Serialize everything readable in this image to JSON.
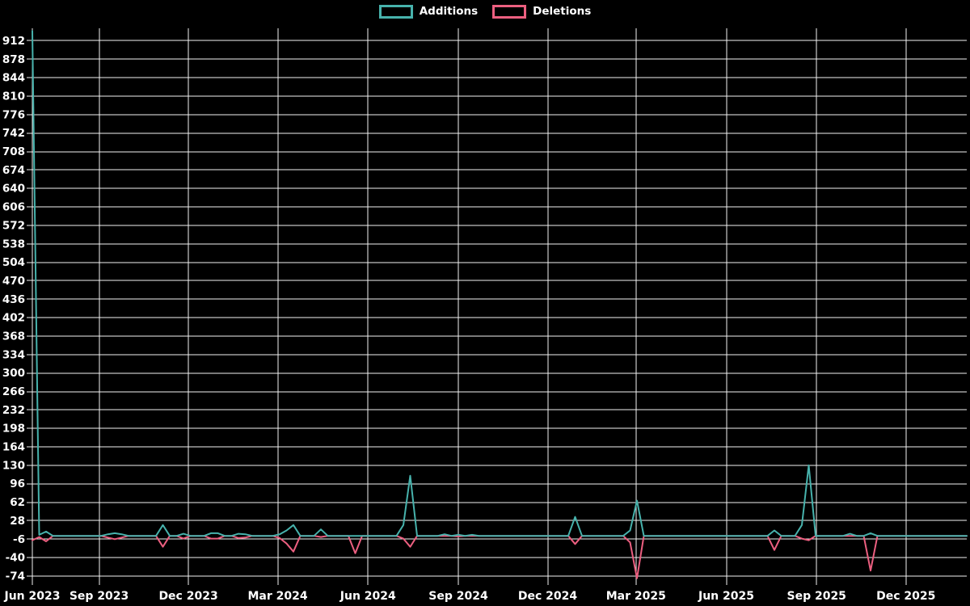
{
  "chart_data": {
    "type": "line",
    "title": "",
    "xlabel": "",
    "ylabel": "",
    "background": "#000000",
    "grid": true,
    "grid_color": "#f2f2f2",
    "text_color": "#ffffff",
    "legend_position": "top-center",
    "legend": [
      {
        "label": "Additions",
        "color": "#47b2ac"
      },
      {
        "label": "Deletions",
        "color": "#ec5f80"
      }
    ],
    "ylim": [
      -80,
      935
    ],
    "y_ticks": [
      912,
      878,
      844,
      810,
      776,
      742,
      708,
      674,
      640,
      606,
      572,
      538,
      504,
      470,
      436,
      402,
      368,
      334,
      300,
      266,
      232,
      198,
      164,
      130,
      96,
      62,
      28,
      -6,
      -40,
      -74
    ],
    "x_domain": [
      "2023-06-25",
      "2026-02-01"
    ],
    "x_ticks": [
      {
        "label": "Jun 2023",
        "date": "2023-06-25"
      },
      {
        "label": "Sep 2023",
        "date": "2023-09-01"
      },
      {
        "label": "Dec 2023",
        "date": "2023-12-01"
      },
      {
        "label": "Mar 2024",
        "date": "2024-03-01"
      },
      {
        "label": "Jun 2024",
        "date": "2024-06-01"
      },
      {
        "label": "Sep 2024",
        "date": "2024-09-01"
      },
      {
        "label": "Dec 2024",
        "date": "2024-12-01"
      },
      {
        "label": "Mar 2025",
        "date": "2025-03-01"
      },
      {
        "label": "Jun 2025",
        "date": "2025-06-01"
      },
      {
        "label": "Sep 2025",
        "date": "2025-09-01"
      },
      {
        "label": "Dec 2025",
        "date": "2025-12-01"
      }
    ],
    "series": [
      {
        "name": "Additions",
        "color": "#47b2ac",
        "key": "additions"
      },
      {
        "name": "Deletions",
        "color": "#ec5f80",
        "key": "deletions"
      }
    ],
    "points": [
      {
        "date": "2023-06-25",
        "additions": 930,
        "deletions": -8
      },
      {
        "date": "2023-07-02",
        "additions": 2,
        "deletions": -2
      },
      {
        "date": "2023-07-09",
        "additions": 8,
        "deletions": -10
      },
      {
        "date": "2023-07-16",
        "additions": 0,
        "deletions": 0
      },
      {
        "date": "2023-09-03",
        "additions": 0,
        "deletions": 0
      },
      {
        "date": "2023-09-10",
        "additions": 3,
        "deletions": -3
      },
      {
        "date": "2023-09-17",
        "additions": 5,
        "deletions": -6
      },
      {
        "date": "2023-09-24",
        "additions": 3,
        "deletions": -3
      },
      {
        "date": "2023-10-01",
        "additions": 0,
        "deletions": 0
      },
      {
        "date": "2023-10-29",
        "additions": 0,
        "deletions": 0
      },
      {
        "date": "2023-11-05",
        "additions": 20,
        "deletions": -20
      },
      {
        "date": "2023-11-12",
        "additions": 0,
        "deletions": 0
      },
      {
        "date": "2023-11-19",
        "additions": 0,
        "deletions": 0
      },
      {
        "date": "2023-11-26",
        "additions": 4,
        "deletions": -5
      },
      {
        "date": "2023-12-03",
        "additions": 0,
        "deletions": 0
      },
      {
        "date": "2023-12-17",
        "additions": 0,
        "deletions": 0
      },
      {
        "date": "2023-12-24",
        "additions": 5,
        "deletions": -5
      },
      {
        "date": "2023-12-31",
        "additions": 5,
        "deletions": -5
      },
      {
        "date": "2024-01-07",
        "additions": 0,
        "deletions": 0
      },
      {
        "date": "2024-01-14",
        "additions": 0,
        "deletions": 0
      },
      {
        "date": "2024-01-21",
        "additions": 4,
        "deletions": -4
      },
      {
        "date": "2024-01-28",
        "additions": 3,
        "deletions": -3
      },
      {
        "date": "2024-02-04",
        "additions": 0,
        "deletions": 0
      },
      {
        "date": "2024-02-25",
        "additions": 0,
        "deletions": 0
      },
      {
        "date": "2024-03-03",
        "additions": 3,
        "deletions": -4
      },
      {
        "date": "2024-03-10",
        "additions": 10,
        "deletions": -14
      },
      {
        "date": "2024-03-17",
        "additions": 20,
        "deletions": -29
      },
      {
        "date": "2024-03-24",
        "additions": 0,
        "deletions": 0
      },
      {
        "date": "2024-04-07",
        "additions": 0,
        "deletions": 0
      },
      {
        "date": "2024-04-14",
        "additions": 12,
        "deletions": -2
      },
      {
        "date": "2024-04-21",
        "additions": 0,
        "deletions": 0
      },
      {
        "date": "2024-05-12",
        "additions": 0,
        "deletions": 0
      },
      {
        "date": "2024-05-19",
        "additions": 0,
        "deletions": -32
      },
      {
        "date": "2024-05-26",
        "additions": 0,
        "deletions": 0
      },
      {
        "date": "2024-06-30",
        "additions": 0,
        "deletions": 0
      },
      {
        "date": "2024-07-07",
        "additions": 20,
        "deletions": -5
      },
      {
        "date": "2024-07-14",
        "additions": 111,
        "deletions": -20
      },
      {
        "date": "2024-07-21",
        "additions": 0,
        "deletions": 0
      },
      {
        "date": "2024-08-11",
        "additions": 0,
        "deletions": 0
      },
      {
        "date": "2024-08-18",
        "additions": 3,
        "deletions": 0
      },
      {
        "date": "2024-08-25",
        "additions": 0,
        "deletions": 0
      },
      {
        "date": "2024-09-01",
        "additions": 2,
        "deletions": -1
      },
      {
        "date": "2024-09-08",
        "additions": 0,
        "deletions": 0
      },
      {
        "date": "2024-09-15",
        "additions": 2,
        "deletions": 0
      },
      {
        "date": "2024-09-22",
        "additions": 0,
        "deletions": 0
      },
      {
        "date": "2024-12-22",
        "additions": 0,
        "deletions": 0
      },
      {
        "date": "2024-12-29",
        "additions": 35,
        "deletions": -15
      },
      {
        "date": "2025-01-05",
        "additions": 0,
        "deletions": 0
      },
      {
        "date": "2025-02-16",
        "additions": 0,
        "deletions": 0
      },
      {
        "date": "2025-02-23",
        "additions": 10,
        "deletions": -12
      },
      {
        "date": "2025-03-02",
        "additions": 65,
        "deletions": -78
      },
      {
        "date": "2025-03-09",
        "additions": 0,
        "deletions": 0
      },
      {
        "date": "2025-07-13",
        "additions": 0,
        "deletions": 0
      },
      {
        "date": "2025-07-20",
        "additions": 10,
        "deletions": -26
      },
      {
        "date": "2025-07-27",
        "additions": 0,
        "deletions": 0
      },
      {
        "date": "2025-08-10",
        "additions": 0,
        "deletions": 0
      },
      {
        "date": "2025-08-17",
        "additions": 20,
        "deletions": -5
      },
      {
        "date": "2025-08-24",
        "additions": 130,
        "deletions": -8
      },
      {
        "date": "2025-08-31",
        "additions": 0,
        "deletions": 0
      },
      {
        "date": "2025-09-28",
        "additions": 0,
        "deletions": 0
      },
      {
        "date": "2025-10-05",
        "additions": 4,
        "deletions": 0
      },
      {
        "date": "2025-10-12",
        "additions": 0,
        "deletions": 0
      },
      {
        "date": "2025-10-19",
        "additions": 0,
        "deletions": 0
      },
      {
        "date": "2025-10-26",
        "additions": 5,
        "deletions": -64
      },
      {
        "date": "2025-11-02",
        "additions": 0,
        "deletions": 0
      },
      {
        "date": "2026-02-01",
        "additions": 0,
        "deletions": 0
      }
    ]
  }
}
